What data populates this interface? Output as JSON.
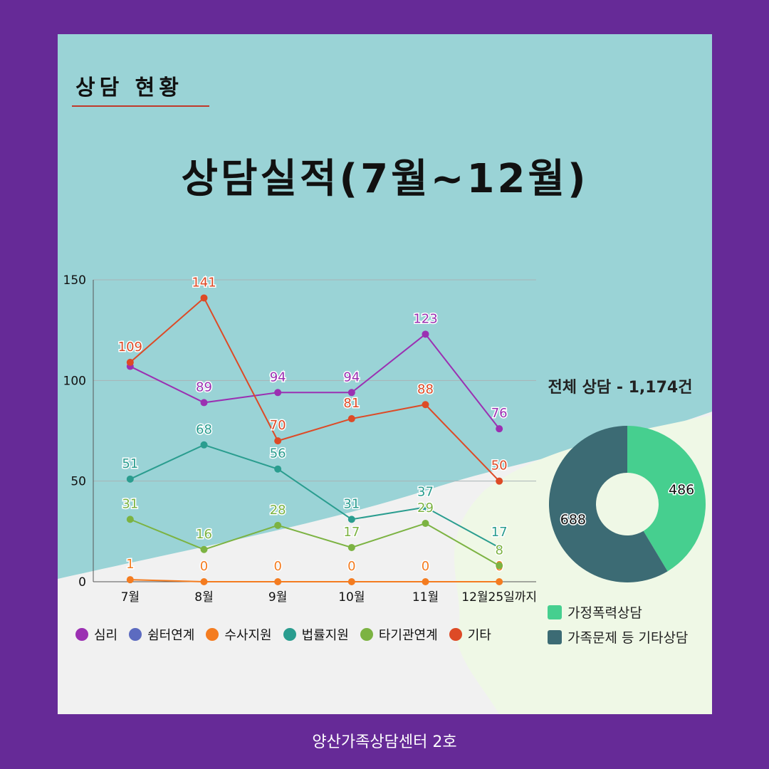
{
  "section_title": "상담 현황",
  "main_title": "상담실적(7월~12월)",
  "chart_data": [
    {
      "type": "line",
      "categories": [
        "7월",
        "8월",
        "9월",
        "10월",
        "11월",
        "12월25일까지"
      ],
      "ylim": [
        0,
        150
      ],
      "yticks": [
        0,
        50,
        100,
        150
      ],
      "grid": true,
      "legend_position": "bottom",
      "series": [
        {
          "name": "심리",
          "color": "#9b30b2",
          "values": [
            107,
            89,
            94,
            94,
            123,
            76
          ],
          "labels": [
            "",
            "89",
            "94",
            "94",
            "123",
            "76"
          ]
        },
        {
          "name": "쉼터연계",
          "color": "#5c6bc0",
          "values": [
            null,
            null,
            null,
            null,
            null,
            null
          ],
          "labels": []
        },
        {
          "name": "수사지원",
          "color": "#f47c20",
          "values": [
            1,
            0,
            0,
            0,
            0,
            0
          ],
          "labels": [
            "1",
            "0",
            "0",
            "0",
            "0",
            "0"
          ]
        },
        {
          "name": "법률지원",
          "color": "#2a9d8f",
          "values": [
            51,
            68,
            56,
            31,
            37,
            17
          ],
          "labels": [
            "51",
            "68",
            "56",
            "31",
            "37",
            "17"
          ]
        },
        {
          "name": "타기관연계",
          "color": "#7cb342",
          "values": [
            31,
            16,
            28,
            17,
            29,
            8
          ],
          "labels": [
            "31",
            "16",
            "28",
            "17",
            "29",
            "8"
          ]
        },
        {
          "name": "기타",
          "color": "#dd4a26",
          "values": [
            109,
            141,
            70,
            81,
            88,
            50
          ],
          "labels": [
            "109",
            "141",
            "70",
            "81",
            "88",
            "50"
          ]
        }
      ]
    },
    {
      "type": "pie",
      "title": "전체 상담 - 1,174건",
      "slices": [
        {
          "name": "가정폭력상담",
          "value": 486,
          "label": "486",
          "color": "#46cf8f"
        },
        {
          "name": "가족문제 등 기타상담",
          "value": 688,
          "label": "688",
          "color": "#3c6b74"
        }
      ]
    }
  ],
  "footer": "양산가족상담센터 2호"
}
